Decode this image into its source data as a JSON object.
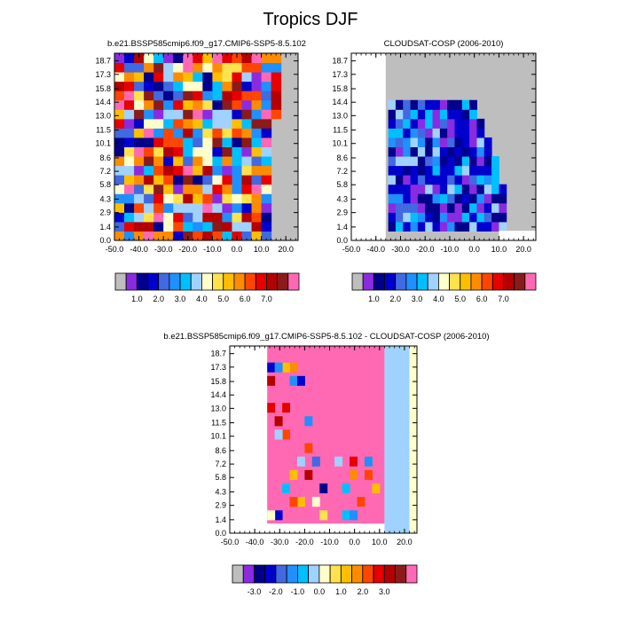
{
  "figure_title": "Tropics DJF",
  "chart_data": [
    {
      "type": "heatmap",
      "title": "b.e21.BSSP585cmip6.f09_g17.CMIP6-SSP5-8.5.102",
      "x_ticks": [
        "-50.0",
        "-40.0",
        "-30.0",
        "-20.0",
        "-10.0",
        "0.0",
        "10.0",
        "20.0"
      ],
      "y_ticks": [
        "0.0",
        "1.4",
        "2.9",
        "4.3",
        "5.8",
        "7.2",
        "8.6",
        "10.1",
        "11.5",
        "13.0",
        "14.4",
        "15.8",
        "17.3",
        "18.7"
      ],
      "xlim": [
        -50,
        25
      ],
      "ylim": [
        0,
        19.5
      ],
      "missing_color": "#bebebe",
      "colorbar": {
        "labels": [
          "1.0",
          "2.0",
          "3.0",
          "4.0",
          "5.0",
          "6.0",
          "7.0"
        ],
        "colors": [
          "#bebebe",
          "#8a2be2",
          "#00008b",
          "#0000cd",
          "#4169e1",
          "#1e90ff",
          "#00bfff",
          "#a0d2ff",
          "#ffffcc",
          "#ffe24c",
          "#ffbf00",
          "#ff8c00",
          "#ff4500",
          "#e60000",
          "#b40000",
          "#8b1a1a",
          "#ff69b4"
        ]
      }
    },
    {
      "type": "heatmap",
      "title": "CLOUDSAT-COSP (2006-2010)",
      "x_ticks": [
        "-50.0",
        "-40.0",
        "-30.0",
        "-20.0",
        "-10.0",
        "0.0",
        "10.0",
        "20.0"
      ],
      "y_ticks": [
        "0.0",
        "1.4",
        "2.9",
        "4.3",
        "5.8",
        "7.2",
        "8.6",
        "10.1",
        "11.5",
        "13.0",
        "14.4",
        "15.8",
        "17.3",
        "18.7"
      ],
      "xlim": [
        -50,
        25
      ],
      "ylim": [
        0,
        19.5
      ],
      "missing_color": "#bebebe",
      "colorbar": {
        "labels": [
          "1.0",
          "2.0",
          "3.0",
          "4.0",
          "5.0",
          "6.0",
          "7.0"
        ],
        "colors": [
          "#bebebe",
          "#8a2be2",
          "#00008b",
          "#0000cd",
          "#4169e1",
          "#1e90ff",
          "#00bfff",
          "#a0d2ff",
          "#ffffcc",
          "#ffe24c",
          "#ffbf00",
          "#ff8c00",
          "#ff4500",
          "#e60000",
          "#b40000",
          "#8b1a1a",
          "#ff69b4"
        ]
      }
    },
    {
      "type": "heatmap",
      "title": "b.e21.BSSP585cmip6.f09_g17.CMIP6-SSP5-8.5.102 - CLOUDSAT-COSP (2006-2010)",
      "x_ticks": [
        "-50.0",
        "-40.0",
        "-30.0",
        "-20.0",
        "-10.0",
        "0.0",
        "10.0",
        "20.0"
      ],
      "y_ticks": [
        "0.0",
        "1.4",
        "2.9",
        "4.3",
        "5.8",
        "7.2",
        "8.6",
        "10.1",
        "11.5",
        "13.0",
        "14.4",
        "15.8",
        "17.3",
        "18.7"
      ],
      "xlim": [
        -50,
        25
      ],
      "ylim": [
        0,
        19.5
      ],
      "missing_color": "#bebebe",
      "colorbar": {
        "labels": [
          "-3.0",
          "-2.0",
          "-1.0",
          "0.0",
          "1.0",
          "2.0",
          "3.0"
        ],
        "colors": [
          "#bebebe",
          "#8a2be2",
          "#00008b",
          "#0000cd",
          "#4169e1",
          "#1e90ff",
          "#00bfff",
          "#a0d2ff",
          "#ffffcc",
          "#ffe24c",
          "#ffbf00",
          "#ff8c00",
          "#ff4500",
          "#e60000",
          "#b40000",
          "#8b1a1a",
          "#ff69b4"
        ]
      }
    }
  ]
}
